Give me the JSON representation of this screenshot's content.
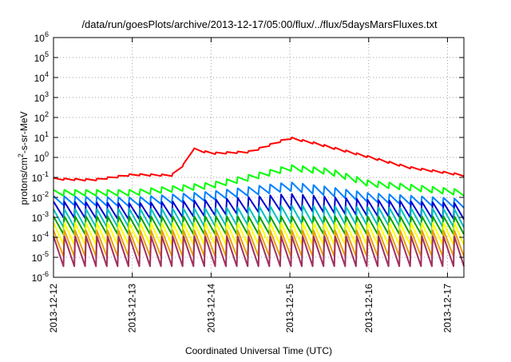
{
  "chart_data": {
    "type": "line",
    "title": "/data/run/goesPlots/archive/2013-12-17/05:00/flux/../flux/5daysMarsFluxes.txt",
    "xlabel": "Coordinated Universal Time (UTC)",
    "ylabel": {
      "prefix": "protons/cm",
      "sup": "2",
      "suffix": "-s-sr-MeV"
    },
    "y_scale": "log",
    "ylim_exp": [
      -6,
      6
    ],
    "y_ticks": [
      {
        "base": "10",
        "exp": "6"
      },
      {
        "base": "10",
        "exp": "5"
      },
      {
        "base": "10",
        "exp": "4"
      },
      {
        "base": "10",
        "exp": "3"
      },
      {
        "base": "10",
        "exp": "2"
      },
      {
        "base": "10",
        "exp": "1"
      },
      {
        "base": "10",
        "exp": "0"
      },
      {
        "base": "10",
        "exp": "-1"
      },
      {
        "base": "10",
        "exp": "-2"
      },
      {
        "base": "10",
        "exp": "-3"
      },
      {
        "base": "10",
        "exp": "-4"
      },
      {
        "base": "10",
        "exp": "-5"
      },
      {
        "base": "10",
        "exp": "-6"
      }
    ],
    "x_ticks": [
      "2013-12-12",
      "2013-12-13",
      "2013-12-14",
      "2013-12-15",
      "2013-12-16",
      "2013-12-17"
    ],
    "x_range_days": [
      "2013-12-12",
      "2013-12-17 05:00"
    ],
    "grid": true,
    "legend": "none",
    "sawtooth_period_hours": 3.3,
    "series": [
      {
        "color": "#ff0000",
        "baseline": [
          [
            0,
            0.08
          ],
          [
            0.5,
            0.07
          ],
          [
            1,
            0.13
          ],
          [
            1.5,
            0.12
          ],
          [
            1.65,
            0.4
          ],
          [
            1.7,
            3
          ],
          [
            2,
            1.5
          ],
          [
            2.5,
            1.8
          ],
          [
            3,
            9
          ],
          [
            3.3,
            5
          ],
          [
            3.6,
            2.5
          ],
          [
            4,
            1
          ],
          [
            4.5,
            0.3
          ],
          [
            5.21,
            0.12
          ]
        ],
        "amp": 0.07,
        "shape": "stair"
      },
      {
        "color": "#00ff00",
        "baseline": [
          [
            0,
            0.017
          ],
          [
            1,
            0.017
          ],
          [
            2,
            0.04
          ],
          [
            2.5,
            0.1
          ],
          [
            3,
            0.3
          ],
          [
            3.5,
            0.2
          ],
          [
            4,
            0.05
          ],
          [
            5.21,
            0.017
          ]
        ],
        "amp": 0.15,
        "shape": "saw"
      },
      {
        "color": "#0080ff",
        "baseline": [
          [
            0,
            0.007
          ],
          [
            1,
            0.006
          ],
          [
            2,
            0.012
          ],
          [
            3,
            0.035
          ],
          [
            3.5,
            0.02
          ],
          [
            4,
            0.01
          ],
          [
            5.21,
            0.005
          ]
        ],
        "amp": 0.22,
        "shape": "saw"
      },
      {
        "color": "#0000d0",
        "baseline": [
          [
            0,
            0.0025
          ],
          [
            1,
            0.002
          ],
          [
            2,
            0.003
          ],
          [
            3,
            0.006
          ],
          [
            4,
            0.003
          ],
          [
            5.21,
            0.002
          ]
        ],
        "amp": 0.4,
        "shape": "saw"
      },
      {
        "color": "#00c0c0",
        "baseline": [
          [
            0,
            0.0009
          ],
          [
            2,
            0.001
          ],
          [
            3,
            0.0014
          ],
          [
            5.21,
            0.0009
          ]
        ],
        "amp": 0.45,
        "shape": "saw"
      },
      {
        "color": "#00a000",
        "baseline": [
          [
            0,
            0.0004
          ],
          [
            5.21,
            0.0004
          ]
        ],
        "amp": 0.45,
        "shape": "saw"
      },
      {
        "color": "#ffff00",
        "baseline": [
          [
            0,
            0.00015
          ],
          [
            5.21,
            0.00015
          ]
        ],
        "amp": 0.55,
        "shape": "saw"
      },
      {
        "color": "#e8a000",
        "baseline": [
          [
            0,
            5e-05
          ],
          [
            5.21,
            5e-05
          ]
        ],
        "amp": 0.65,
        "shape": "saw"
      },
      {
        "color": "#a03060",
        "baseline": [
          [
            0,
            2e-05
          ],
          [
            5.21,
            2e-05
          ]
        ],
        "amp": 0.75,
        "shape": "saw"
      }
    ]
  }
}
